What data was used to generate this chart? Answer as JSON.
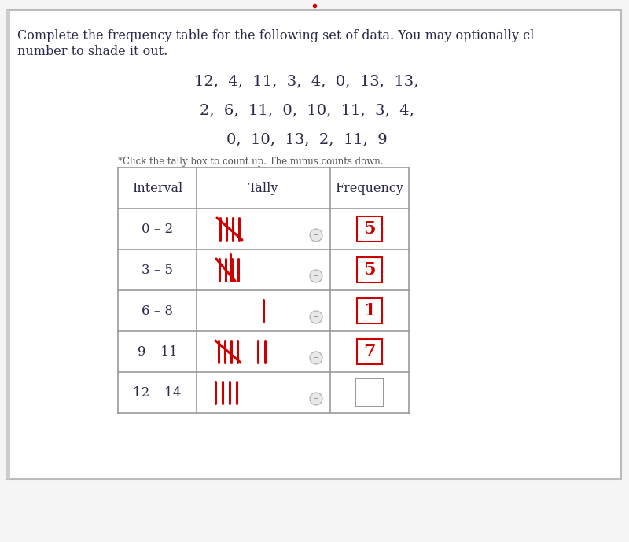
{
  "bg_color": "#f5f5f5",
  "content_bg": "#ffffff",
  "text_color": "#2a2a4a",
  "tally_color": "#cc0000",
  "freq_color": "#cc0000",
  "border_color": "#999999",
  "instruction_line1": "Complete the frequency table for the following set of data. You may optionally clïk a",
  "instruction_line2": "number to shade it out.",
  "data_line1": "12,  4,  11,  3,  4,  0,  13,  13,",
  "data_line2": "2,  6,  11,  0,  10,  11,  3,  4,",
  "data_line3": "0,  10,  13,  2,  11,  9",
  "note": "*Click the tally box to count up. The minus counts down.",
  "col_headers": [
    "Interval",
    "Tally",
    "Frequency"
  ],
  "intervals": [
    "0 – 2",
    "3 – 5",
    "6 – 8",
    "9 – 11",
    "12 – 14"
  ],
  "frequencies": [
    "5",
    "5",
    "1",
    "7",
    ""
  ],
  "freq_boxed": [
    true,
    true,
    true,
    true,
    false
  ],
  "fig_width": 8.0,
  "fig_height": 6.89
}
